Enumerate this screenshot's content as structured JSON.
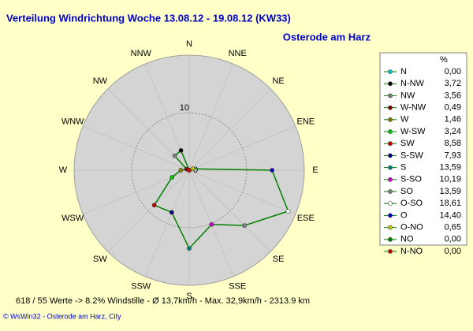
{
  "chart_data": {
    "type": "windrose",
    "title": "Verteilung Windrichtung   Woche 13.08.12 - 19.08.12 (KW33)",
    "subtitle": "Osterode am Harz",
    "directions": [
      "N",
      "NNE",
      "NE",
      "ENE",
      "E",
      "ESE",
      "SE",
      "SSE",
      "S",
      "SSW",
      "SW",
      "WSW",
      "W",
      "WNW",
      "NW",
      "NNW"
    ],
    "legend_header": "%",
    "categories": [
      "N",
      "N-NW",
      "NW",
      "W-NW",
      "W",
      "W-SW",
      "SW",
      "S-SW",
      "S",
      "S-SO",
      "SO",
      "O-SO",
      "O",
      "O-NO",
      "NO",
      "N-NO"
    ],
    "values": [
      0.0,
      3.72,
      3.56,
      0.49,
      1.46,
      3.24,
      8.58,
      7.93,
      13.59,
      10.19,
      13.59,
      18.61,
      14.4,
      0.65,
      0.0,
      0.0
    ],
    "value_labels": [
      "0,00",
      "3,72",
      "3,56",
      "0,49",
      "1,46",
      "3,24",
      "8,58",
      "7,93",
      "13,59",
      "10,19",
      "13,59",
      "18,61",
      "14,40",
      "0,65",
      "0,00",
      "0,00"
    ],
    "colors": [
      "#00c8c8",
      "#000000",
      "#808080",
      "#800000",
      "#808000",
      "#00c800",
      "#c80000",
      "#000080",
      "#008080",
      "#c800c8",
      "#808080",
      "#ffffff",
      "#0000c8",
      "#c8c800",
      "#008000",
      "#c80000"
    ],
    "line_color": "#008000",
    "rlim": [
      0,
      20
    ],
    "rticks": [
      0,
      10
    ],
    "footer": "618 / 55 Werte  -> 8.2% Windstille  -  Ø 13,7km/h  -  Max. 32,9km/h  -  2313.9 km",
    "credit": "© WsWin32  -  Osterode am Harz, City"
  }
}
